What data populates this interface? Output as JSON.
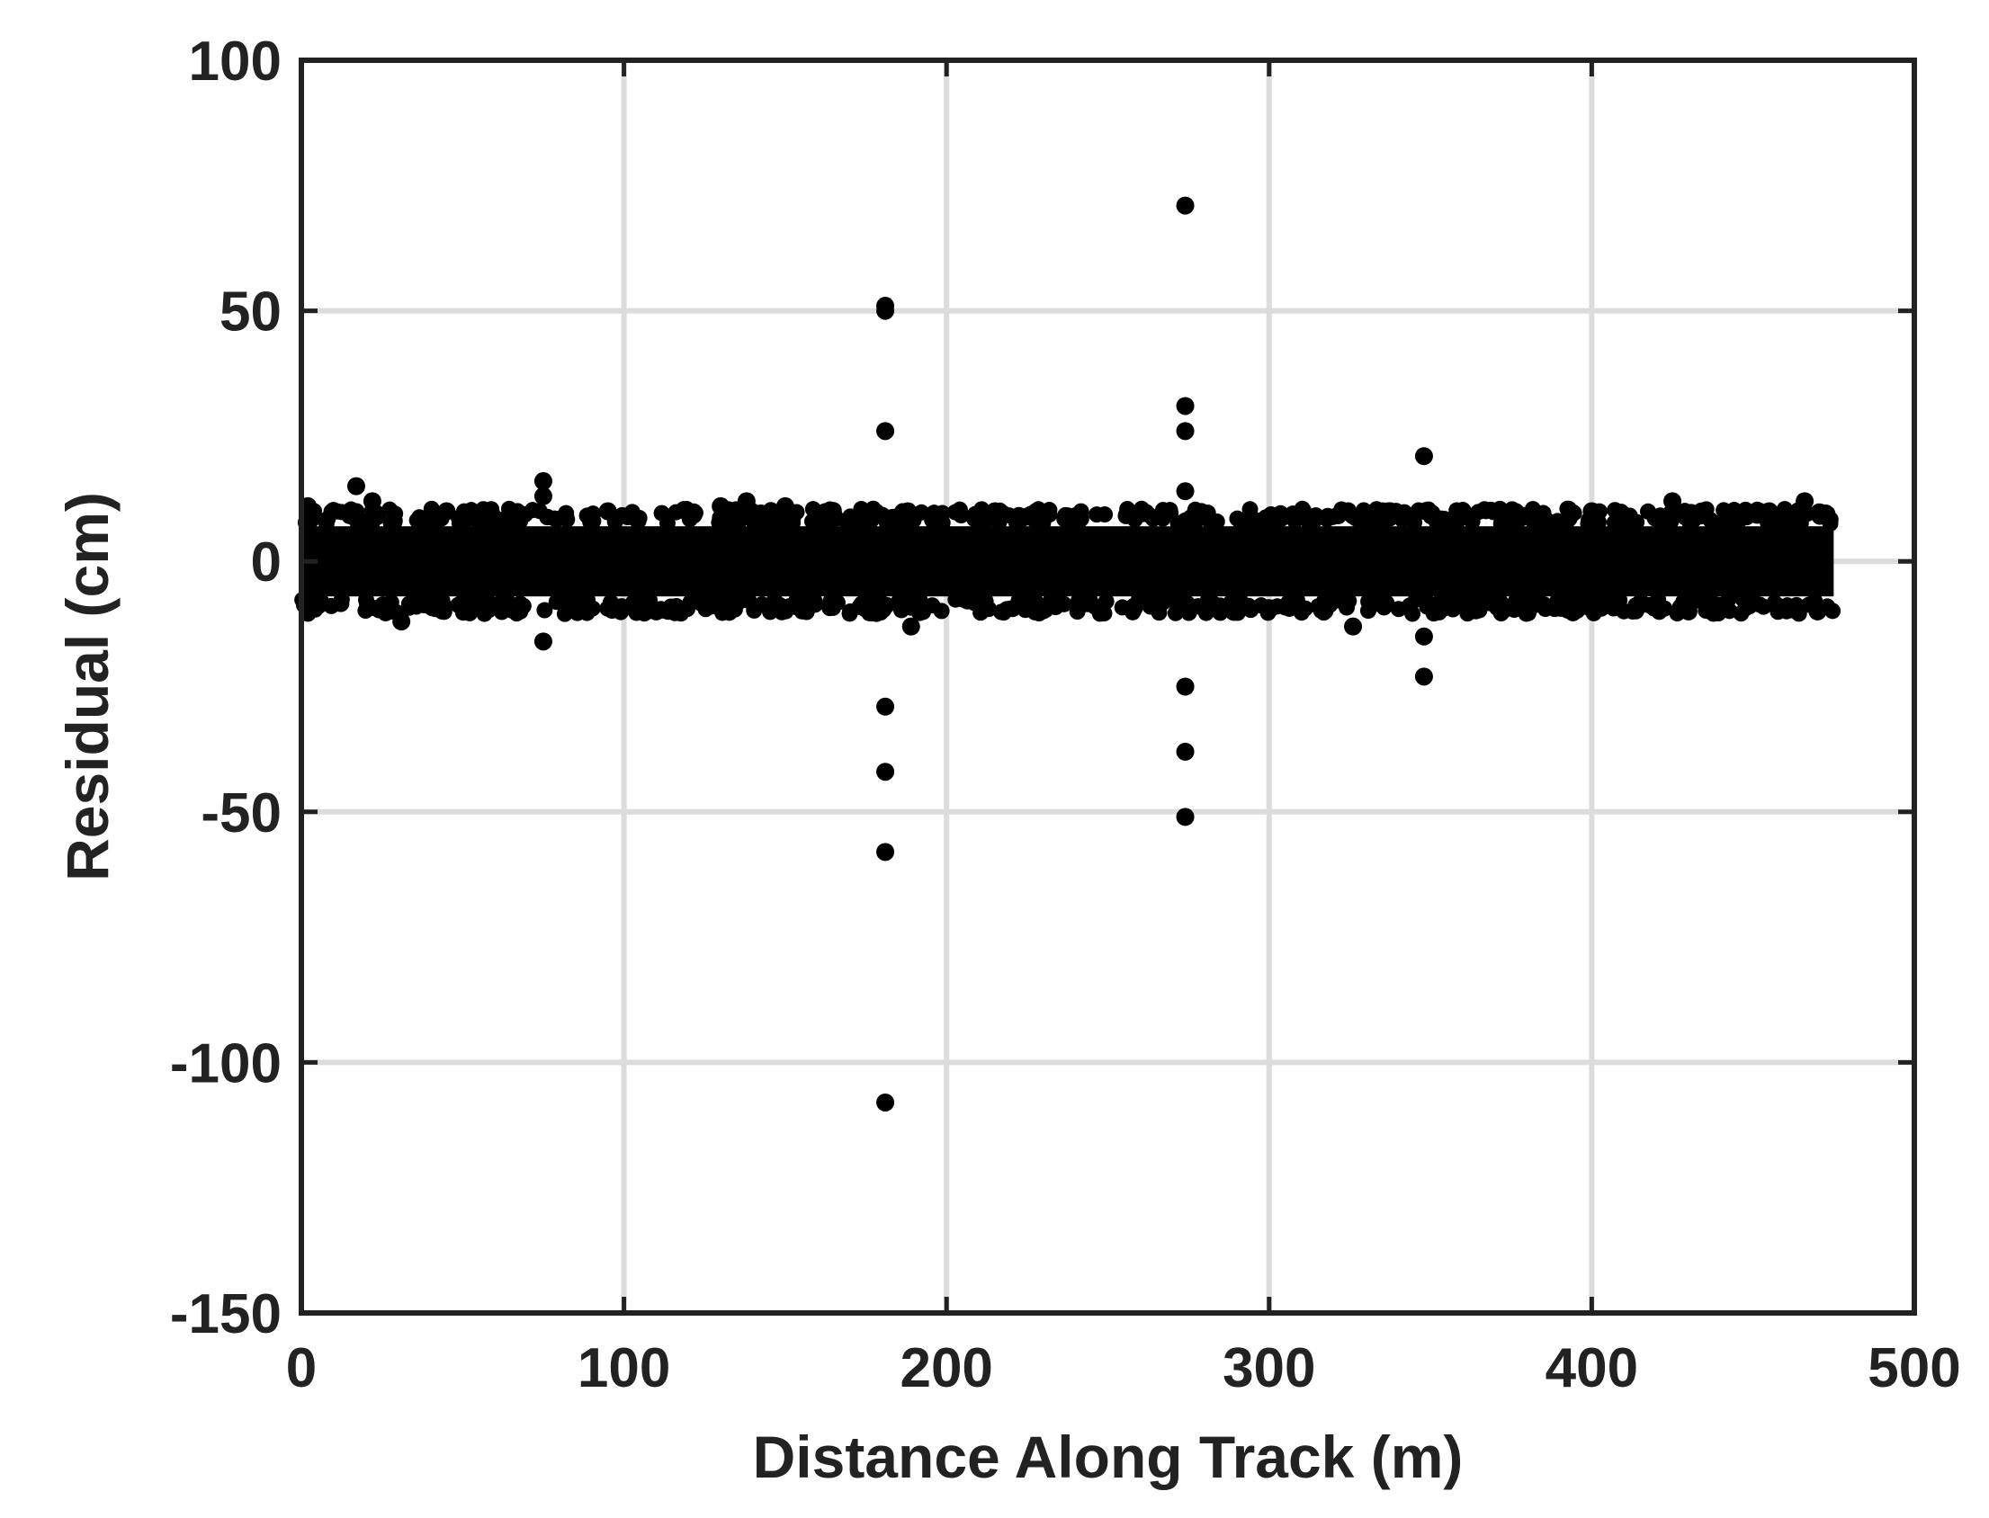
{
  "chart_data": {
    "type": "scatter",
    "title": "",
    "xlabel": "Distance Along Track (m)",
    "ylabel": "Residual (cm)",
    "xlim": [
      0,
      500
    ],
    "ylim": [
      -150,
      100
    ],
    "xticks": [
      0,
      100,
      200,
      300,
      400,
      500
    ],
    "yticks": [
      -150,
      -100,
      -50,
      0,
      50,
      100
    ],
    "xtick_labels": [
      "0",
      "100",
      "200",
      "300",
      "400",
      "500"
    ],
    "ytick_labels": [
      "-150",
      "-100",
      "-50",
      "0",
      "50",
      "100"
    ],
    "grid": true,
    "marker_color": "#000000",
    "grid_color": "#dcdcdc",
    "dense_band": {
      "x_range": [
        0,
        475
      ],
      "y_range": [
        -9,
        9
      ],
      "description_free_note": ""
    },
    "series": [
      {
        "values": [
          [
            2,
            11
          ],
          [
            17,
            15
          ],
          [
            22,
            12
          ],
          [
            31,
            -12
          ],
          [
            45,
            10
          ],
          [
            75,
            16
          ],
          [
            75,
            13
          ],
          [
            75,
            -16
          ],
          [
            95,
            10
          ],
          [
            110,
            -10
          ],
          [
            130,
            11
          ],
          [
            138,
            12
          ],
          [
            150,
            11
          ],
          [
            165,
            9
          ],
          [
            181,
            51
          ],
          [
            181,
            50
          ],
          [
            181,
            26
          ],
          [
            181,
            -29
          ],
          [
            181,
            -42
          ],
          [
            181,
            -58
          ],
          [
            181,
            -108
          ],
          [
            188,
            10
          ],
          [
            189,
            -13
          ],
          [
            215,
            10
          ],
          [
            240,
            9
          ],
          [
            274,
            71
          ],
          [
            274,
            31
          ],
          [
            274,
            26
          ],
          [
            274,
            14
          ],
          [
            274,
            -25
          ],
          [
            274,
            -38
          ],
          [
            274,
            -51
          ],
          [
            300,
            8
          ],
          [
            326,
            -13
          ],
          [
            348,
            21
          ],
          [
            348,
            -15
          ],
          [
            348,
            -23
          ],
          [
            360,
            10
          ],
          [
            400,
            10
          ],
          [
            425,
            12
          ],
          [
            430,
            -10
          ],
          [
            455,
            10
          ],
          [
            466,
            12
          ],
          [
            470,
            -10
          ]
        ]
      }
    ]
  }
}
